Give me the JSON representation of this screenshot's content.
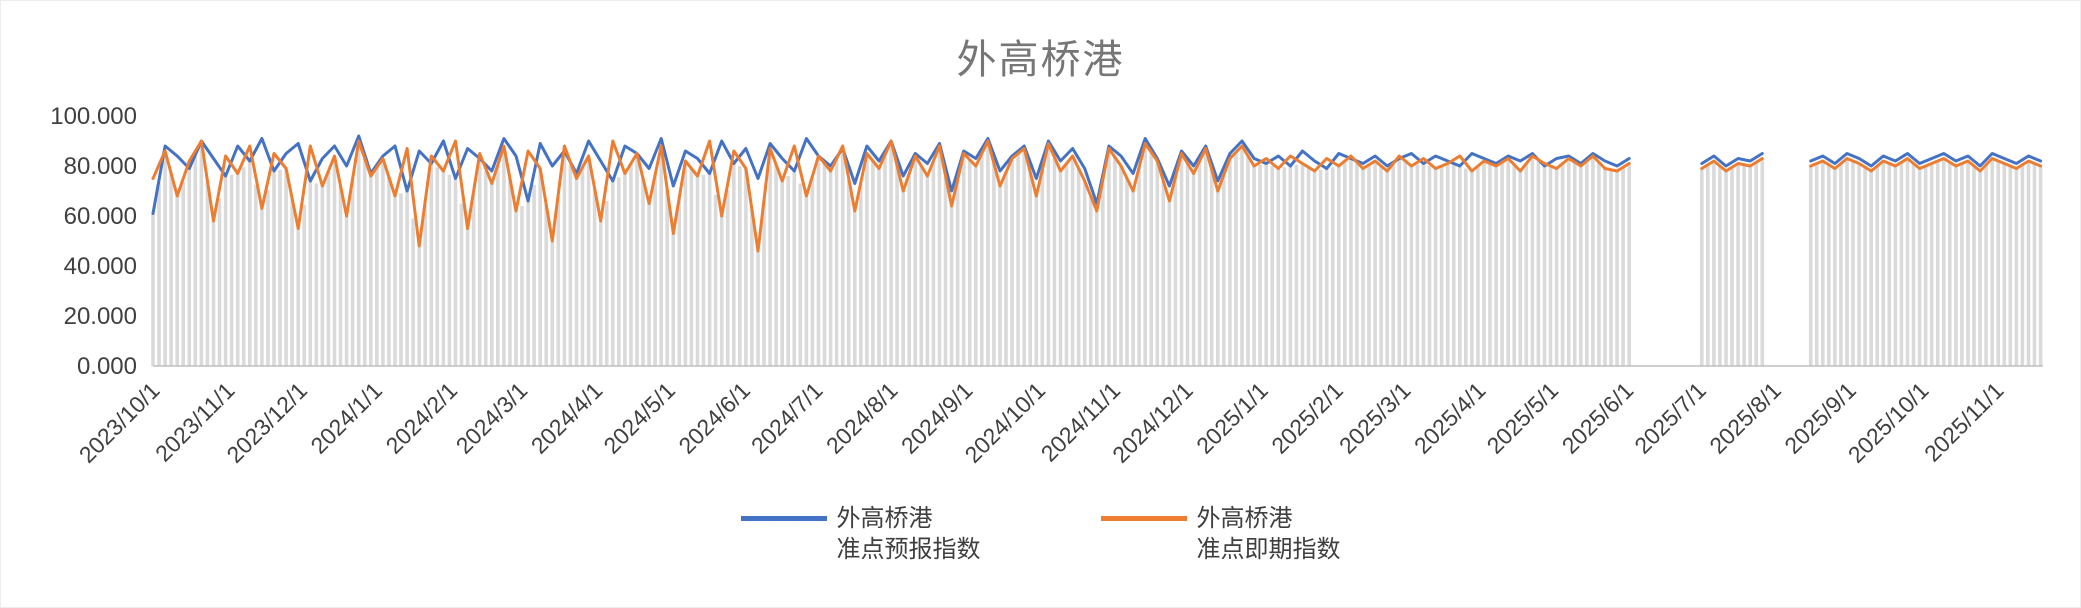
{
  "chart_data": {
    "type": "line",
    "title": "外高桥港",
    "title_color": "#767676",
    "xlabel": "",
    "ylabel": "",
    "ylim": [
      0,
      100
    ],
    "grid": false,
    "legend_position": "bottom-center",
    "axis_color": "#BFBFBF",
    "tick_label_color": "#404040",
    "background_bars": {
      "color": "#DADADA",
      "note": "dense gray daily drop-bars under the lines"
    },
    "y_ticks": [
      {
        "value": 0,
        "label": "0.000"
      },
      {
        "value": 20,
        "label": "20.000"
      },
      {
        "value": 40,
        "label": "40.000"
      },
      {
        "value": 60,
        "label": "60.000"
      },
      {
        "value": 80,
        "label": "80.000"
      },
      {
        "value": 100,
        "label": "100.000"
      }
    ],
    "x_ticks": [
      {
        "label": "2023/10/1",
        "day": 0
      },
      {
        "label": "2023/11/1",
        "day": 31
      },
      {
        "label": "2023/12/1",
        "day": 61
      },
      {
        "label": "2024/1/1",
        "day": 92
      },
      {
        "label": "2024/2/1",
        "day": 123
      },
      {
        "label": "2024/3/1",
        "day": 152
      },
      {
        "label": "2024/4/1",
        "day": 183
      },
      {
        "label": "2024/5/1",
        "day": 213
      },
      {
        "label": "2024/6/1",
        "day": 244
      },
      {
        "label": "2024/7/1",
        "day": 274
      },
      {
        "label": "2024/8/1",
        "day": 305
      },
      {
        "label": "2024/9/1",
        "day": 336
      },
      {
        "label": "2024/10/1",
        "day": 366
      },
      {
        "label": "2024/11/1",
        "day": 397
      },
      {
        "label": "2024/12/1",
        "day": 427
      },
      {
        "label": "2025/1/1",
        "day": 458
      },
      {
        "label": "2025/2/1",
        "day": 489
      },
      {
        "label": "2025/3/1",
        "day": 517
      },
      {
        "label": "2025/4/1",
        "day": 548
      },
      {
        "label": "2025/5/1",
        "day": 578
      },
      {
        "label": "2025/6/1",
        "day": 609
      },
      {
        "label": "2025/7/1",
        "day": 639
      },
      {
        "label": "2025/8/1",
        "day": 670
      },
      {
        "label": "2025/9/1",
        "day": 701
      },
      {
        "label": "2025/10/1",
        "day": 731
      },
      {
        "label": "2025/11/1",
        "day": 762
      }
    ],
    "total_days": 781,
    "sample_step_days": 5,
    "data_gaps": [
      "2025/6/18 - 2025/7/6",
      "2025/8/2 - 2025/8/18"
    ],
    "series": [
      {
        "name": "外高桥港准点预报指数",
        "legend_line1": "外高桥港",
        "legend_line2": "准点预报指数",
        "color": "#4472C4",
        "values": [
          61,
          88,
          84,
          79,
          90,
          83,
          76,
          88,
          82,
          91,
          78,
          85,
          89,
          74,
          83,
          88,
          80,
          92,
          77,
          84,
          88,
          70,
          86,
          81,
          90,
          75,
          87,
          83,
          78,
          91,
          84,
          66,
          89,
          80,
          86,
          77,
          90,
          82,
          74,
          88,
          85,
          79,
          91,
          72,
          86,
          83,
          77,
          90,
          81,
          87,
          75,
          89,
          83,
          78,
          91,
          84,
          80,
          87,
          73,
          88,
          82,
          90,
          76,
          85,
          81,
          89,
          70,
          86,
          83,
          91,
          78,
          84,
          88,
          75,
          90,
          82,
          87,
          79,
          65,
          88,
          84,
          77,
          91,
          83,
          72,
          86,
          80,
          88,
          74,
          85,
          90,
          83,
          81,
          84,
          80,
          86,
          82,
          79,
          85,
          83,
          81,
          84,
          80,
          83,
          85,
          81,
          84,
          82,
          80,
          85,
          83,
          81,
          84,
          82,
          85,
          80,
          83,
          84,
          81,
          85,
          82,
          80,
          83,
          null,
          null,
          null,
          null,
          null,
          81,
          84,
          80,
          83,
          82,
          85,
          null,
          null,
          null,
          82,
          84,
          81,
          85,
          83,
          80,
          84,
          82,
          85,
          81,
          83,
          85,
          82,
          84,
          80,
          85,
          83,
          81,
          84,
          82
        ]
      },
      {
        "name": "外高桥港准点即期指数",
        "legend_line1": "外高桥港",
        "legend_line2": "准点即期指数",
        "color": "#ED7D31",
        "values": [
          75,
          86,
          68,
          82,
          90,
          58,
          84,
          77,
          88,
          63,
          85,
          79,
          55,
          88,
          72,
          84,
          60,
          90,
          76,
          83,
          68,
          87,
          48,
          84,
          78,
          90,
          55,
          85,
          73,
          88,
          62,
          86,
          79,
          50,
          88,
          75,
          84,
          58,
          90,
          77,
          85,
          65,
          88,
          53,
          82,
          76,
          90,
          60,
          86,
          79,
          46,
          87,
          74,
          88,
          68,
          84,
          78,
          88,
          62,
          85,
          79,
          90,
          70,
          84,
          76,
          88,
          64,
          85,
          80,
          90,
          72,
          83,
          87,
          68,
          89,
          78,
          84,
          74,
          62,
          87,
          80,
          70,
          89,
          82,
          66,
          85,
          77,
          87,
          70,
          83,
          88,
          80,
          83,
          79,
          84,
          81,
          78,
          83,
          80,
          84,
          79,
          82,
          78,
          84,
          80,
          83,
          79,
          81,
          84,
          78,
          82,
          80,
          83,
          78,
          84,
          81,
          79,
          83,
          80,
          84,
          79,
          78,
          81,
          null,
          null,
          null,
          null,
          null,
          79,
          82,
          78,
          81,
          80,
          83,
          null,
          null,
          null,
          80,
          82,
          79,
          83,
          81,
          78,
          82,
          80,
          83,
          79,
          81,
          83,
          80,
          82,
          78,
          83,
          81,
          79,
          82,
          80
        ]
      }
    ]
  }
}
